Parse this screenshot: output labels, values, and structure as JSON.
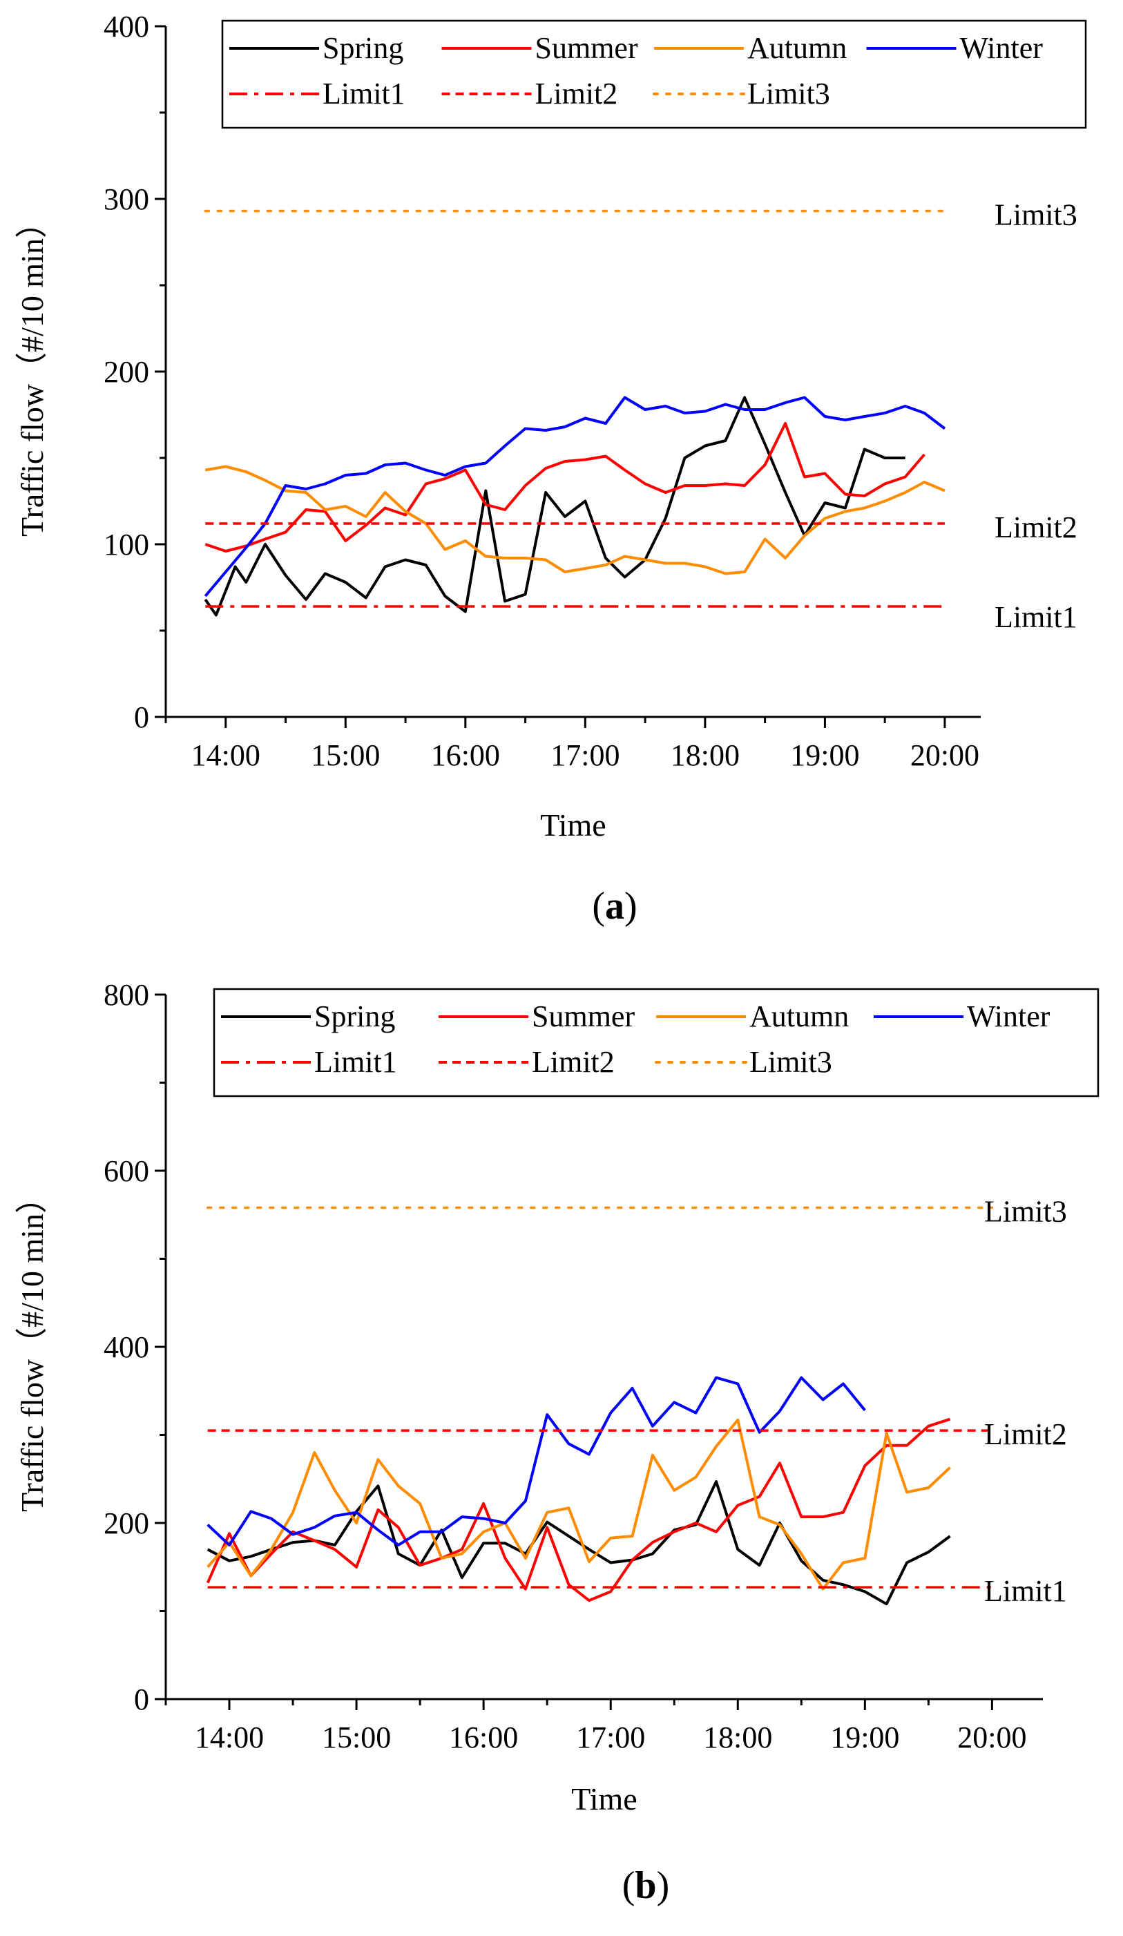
{
  "chart_data": [
    {
      "type": "line",
      "panel_label": "a",
      "xlabel": "Time",
      "ylabel": "Traffic flow（#/10 min）",
      "ylim": [
        0,
        400
      ],
      "yticks": [
        0,
        100,
        200,
        300,
        400
      ],
      "xlim": [
        13.5,
        20.3
      ],
      "xticks": [
        14,
        15,
        16,
        17,
        18,
        19,
        20
      ],
      "xtick_labels": [
        "14:00",
        "15:00",
        "16:00",
        "17:00",
        "18:00",
        "19:00",
        "20:00"
      ],
      "legend_position": "top",
      "colors": {
        "Spring": "#000000",
        "Summer": "#ff0000",
        "Autumn": "#ff8c00",
        "Winter": "#0000ff",
        "Limit1": "#ff0000",
        "Limit2": "#ff0000",
        "Limit3": "#ff8c00"
      },
      "series": [
        {
          "name": "Spring",
          "color": "#000000",
          "x": [
            13.83,
            13.92,
            14.08,
            14.17,
            14.33,
            14.5,
            14.67,
            14.83,
            15.0,
            15.17,
            15.33,
            15.5,
            15.67,
            15.83,
            16.0,
            16.17,
            16.33,
            16.5,
            16.67,
            16.83,
            17.0,
            17.17,
            17.33,
            17.5,
            17.67,
            17.83,
            18.0,
            18.17,
            18.33,
            18.5,
            18.67,
            18.83,
            19.0,
            19.17,
            19.33,
            19.5,
            19.67
          ],
          "values": [
            68,
            59,
            87,
            78,
            100,
            82,
            68,
            83,
            78,
            69,
            87,
            91,
            88,
            70,
            61,
            131,
            67,
            71,
            130,
            116,
            125,
            92,
            81,
            91,
            115,
            150,
            157,
            160,
            185,
            158,
            130,
            105,
            124,
            121,
            155,
            150,
            150
          ]
        },
        {
          "name": "Summer",
          "color": "#ff0000",
          "x": [
            13.83,
            14.0,
            14.17,
            14.33,
            14.5,
            14.67,
            14.83,
            15.0,
            15.17,
            15.33,
            15.5,
            15.67,
            15.83,
            16.0,
            16.17,
            16.33,
            16.5,
            16.67,
            16.83,
            17.0,
            17.17,
            17.33,
            17.5,
            17.67,
            17.83,
            18.0,
            18.17,
            18.33,
            18.5,
            18.67,
            18.83,
            19.0,
            19.17,
            19.33,
            19.5,
            19.67,
            19.83
          ],
          "values": [
            100,
            96,
            99,
            103,
            107,
            120,
            119,
            102,
            111,
            121,
            117,
            135,
            138,
            143,
            123,
            120,
            134,
            144,
            148,
            149,
            151,
            143,
            135,
            130,
            134,
            134,
            135,
            134,
            146,
            170,
            139,
            141,
            129,
            128,
            135,
            139,
            152
          ]
        },
        {
          "name": "Autumn",
          "color": "#ff8c00",
          "x": [
            13.83,
            14.0,
            14.17,
            14.33,
            14.5,
            14.67,
            14.83,
            15.0,
            15.17,
            15.33,
            15.5,
            15.67,
            15.83,
            16.0,
            16.17,
            16.33,
            16.5,
            16.67,
            16.83,
            17.0,
            17.17,
            17.33,
            17.5,
            17.67,
            17.83,
            18.0,
            18.17,
            18.33,
            18.5,
            18.67,
            18.83,
            19.0,
            19.17,
            19.33,
            19.5,
            19.67,
            19.83,
            20.0
          ],
          "values": [
            143,
            145,
            142,
            137,
            131,
            130,
            120,
            122,
            116,
            130,
            119,
            112,
            97,
            102,
            93,
            92,
            92,
            91,
            84,
            86,
            88,
            93,
            91,
            89,
            89,
            87,
            83,
            84,
            103,
            92,
            105,
            115,
            119,
            121,
            125,
            130,
            136,
            131
          ]
        },
        {
          "name": "Winter",
          "color": "#0000ff",
          "x": [
            13.83,
            14.0,
            14.17,
            14.33,
            14.5,
            14.67,
            14.83,
            15.0,
            15.17,
            15.33,
            15.5,
            15.67,
            15.83,
            16.0,
            16.17,
            16.33,
            16.5,
            16.67,
            16.83,
            17.0,
            17.17,
            17.33,
            17.5,
            17.67,
            17.83,
            18.0,
            18.17,
            18.33,
            18.5,
            18.67,
            18.83,
            19.0,
            19.17,
            19.33,
            19.5,
            19.67,
            19.83,
            20.0
          ],
          "values": [
            70,
            84,
            98,
            112,
            134,
            132,
            135,
            140,
            141,
            146,
            147,
            143,
            140,
            145,
            147,
            157,
            167,
            166,
            168,
            173,
            170,
            185,
            178,
            180,
            176,
            177,
            181,
            178,
            178,
            182,
            185,
            174,
            172,
            174,
            176,
            180,
            176,
            167
          ]
        },
        {
          "name": "Limit1",
          "color": "#ff0000",
          "style": "dashdot",
          "x": [
            13.83,
            20.0
          ],
          "values": [
            64,
            64
          ]
        },
        {
          "name": "Limit2",
          "color": "#ff0000",
          "style": "dashed",
          "x": [
            13.83,
            20.0
          ],
          "values": [
            112,
            112
          ]
        },
        {
          "name": "Limit3",
          "color": "#ff8c00",
          "style": "dotted",
          "x": [
            13.83,
            20.0
          ],
          "values": [
            293,
            293
          ]
        }
      ],
      "annotations": [
        "Limit3",
        "Limit2",
        "Limit1"
      ]
    },
    {
      "type": "line",
      "panel_label": "b",
      "xlabel": "Time",
      "ylabel": "Traffic flow（#/10 min）",
      "ylim": [
        0,
        800
      ],
      "yticks": [
        0,
        200,
        400,
        600,
        800
      ],
      "xlim": [
        13.5,
        20.4
      ],
      "xticks": [
        14,
        15,
        16,
        17,
        18,
        19,
        20
      ],
      "xtick_labels": [
        "14:00",
        "15:00",
        "16:00",
        "17:00",
        "18:00",
        "19:00",
        "20:00"
      ],
      "legend_position": "top",
      "colors": {
        "Spring": "#000000",
        "Summer": "#ff0000",
        "Autumn": "#ff8c00",
        "Winter": "#0000ff",
        "Limit1": "#ff0000",
        "Limit2": "#ff0000",
        "Limit3": "#ff8c00"
      },
      "series": [
        {
          "name": "Spring",
          "color": "#000000",
          "x": [
            13.83,
            14.0,
            14.17,
            14.33,
            14.5,
            14.67,
            14.83,
            15.0,
            15.17,
            15.33,
            15.5,
            15.67,
            15.83,
            16.0,
            16.17,
            16.33,
            16.5,
            16.67,
            16.83,
            17.0,
            17.17,
            17.33,
            17.5,
            17.67,
            17.83,
            18.0,
            18.17,
            18.33,
            18.5,
            18.67,
            18.83,
            19.0,
            19.17,
            19.33,
            19.5,
            19.67
          ],
          "values": [
            170,
            157,
            162,
            170,
            178,
            180,
            175,
            213,
            242,
            165,
            152,
            192,
            138,
            177,
            177,
            165,
            201,
            185,
            170,
            155,
            158,
            165,
            192,
            198,
            247,
            170,
            152,
            200,
            157,
            135,
            130,
            122,
            108,
            155,
            167,
            185
          ]
        },
        {
          "name": "Summer",
          "color": "#ff0000",
          "x": [
            13.83,
            14.0,
            14.17,
            14.33,
            14.5,
            14.67,
            14.83,
            15.0,
            15.17,
            15.33,
            15.5,
            15.67,
            15.83,
            16.0,
            16.17,
            16.33,
            16.5,
            16.67,
            16.83,
            17.0,
            17.17,
            17.33,
            17.5,
            17.67,
            17.83,
            18.0,
            18.17,
            18.33,
            18.5,
            18.67,
            18.83,
            19.0,
            19.17,
            19.33,
            19.5,
            19.67
          ],
          "values": [
            132,
            188,
            140,
            165,
            190,
            180,
            170,
            150,
            215,
            195,
            152,
            160,
            170,
            222,
            160,
            125,
            195,
            130,
            112,
            122,
            158,
            178,
            190,
            200,
            190,
            220,
            230,
            268,
            207,
            207,
            212,
            265,
            288,
            288,
            310,
            318
          ]
        },
        {
          "name": "Autumn",
          "color": "#ff8c00",
          "x": [
            13.83,
            14.0,
            14.17,
            14.33,
            14.5,
            14.67,
            14.83,
            15.0,
            15.17,
            15.33,
            15.5,
            15.67,
            15.83,
            16.0,
            16.17,
            16.33,
            16.5,
            16.67,
            16.83,
            17.0,
            17.17,
            17.33,
            17.5,
            17.67,
            17.83,
            18.0,
            18.17,
            18.33,
            18.5,
            18.67,
            18.83,
            19.0,
            19.17,
            19.33,
            19.5,
            19.67
          ],
          "values": [
            150,
            178,
            140,
            170,
            212,
            280,
            237,
            200,
            272,
            242,
            222,
            160,
            165,
            190,
            200,
            160,
            212,
            217,
            156,
            183,
            185,
            277,
            237,
            252,
            287,
            317,
            207,
            198,
            165,
            125,
            155,
            160,
            302,
            235,
            240,
            263
          ]
        },
        {
          "name": "Winter",
          "color": "#0000ff",
          "x": [
            13.83,
            14.0,
            14.17,
            14.33,
            14.5,
            14.67,
            14.83,
            15.0,
            15.17,
            15.33,
            15.5,
            15.67,
            15.83,
            16.0,
            16.17,
            16.33,
            16.5,
            16.67,
            16.83,
            17.0,
            17.17,
            17.33,
            17.5,
            17.67,
            17.83,
            18.0,
            18.17,
            18.33,
            18.5,
            18.67,
            18.83,
            19.0
          ],
          "values": [
            198,
            175,
            213,
            205,
            187,
            195,
            208,
            212,
            192,
            175,
            190,
            190,
            207,
            205,
            200,
            225,
            323,
            290,
            278,
            325,
            353,
            310,
            337,
            325,
            365,
            358,
            303,
            327,
            365,
            340,
            358,
            328
          ]
        },
        {
          "name": "Limit1",
          "color": "#ff0000",
          "style": "dashdot",
          "x": [
            13.83,
            20.0
          ],
          "values": [
            127,
            127
          ]
        },
        {
          "name": "Limit2",
          "color": "#ff0000",
          "style": "dashed",
          "x": [
            13.83,
            20.0
          ],
          "values": [
            305,
            305
          ]
        },
        {
          "name": "Limit3",
          "color": "#ff8c00",
          "style": "dotted",
          "x": [
            13.83,
            20.0
          ],
          "values": [
            558,
            558
          ]
        }
      ],
      "annotations": [
        "Limit3",
        "Limit2",
        "Limit1"
      ]
    }
  ]
}
